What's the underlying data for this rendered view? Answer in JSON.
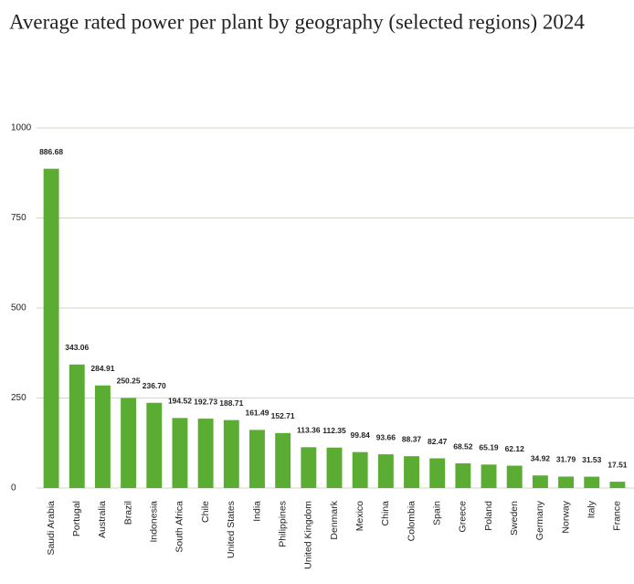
{
  "chart_data": {
    "type": "bar",
    "title": "Average rated power per plant by geography (selected regions) 2024",
    "categories": [
      "Saudi Arabia",
      "Portugal",
      "Australia",
      "Brazil",
      "Indonesia",
      "South Africa",
      "Chile",
      "United States",
      "India",
      "Philippines",
      "United Kingdom",
      "Denmark",
      "Mexico",
      "China",
      "Colombia",
      "Spain",
      "Greece",
      "Poland",
      "Sweden",
      "Germany",
      "Norway",
      "Italy",
      "France"
    ],
    "values": [
      886.68,
      343.06,
      284.91,
      250.25,
      236.7,
      194.52,
      192.73,
      188.71,
      161.49,
      152.71,
      113.36,
      112.35,
      99.84,
      93.66,
      88.37,
      82.47,
      68.52,
      65.19,
      62.12,
      34.92,
      31.79,
      31.53,
      17.51
    ],
    "value_labels": [
      "886.68",
      "343.06",
      "284.91",
      "250.25",
      "236.70",
      "194.52",
      "192.73",
      "188.71",
      "161.49",
      "152.71",
      "113.36",
      "112.35",
      "99.84",
      "93.66",
      "88.37",
      "82.47",
      "68.52",
      "65.19",
      "62.12",
      "34.92",
      "31.79",
      "31.53",
      "17.51"
    ],
    "color": "#5aad32",
    "ylim": [
      0,
      1000
    ],
    "yticks": [
      0,
      250,
      500,
      750,
      1000
    ],
    "grid": true
  }
}
